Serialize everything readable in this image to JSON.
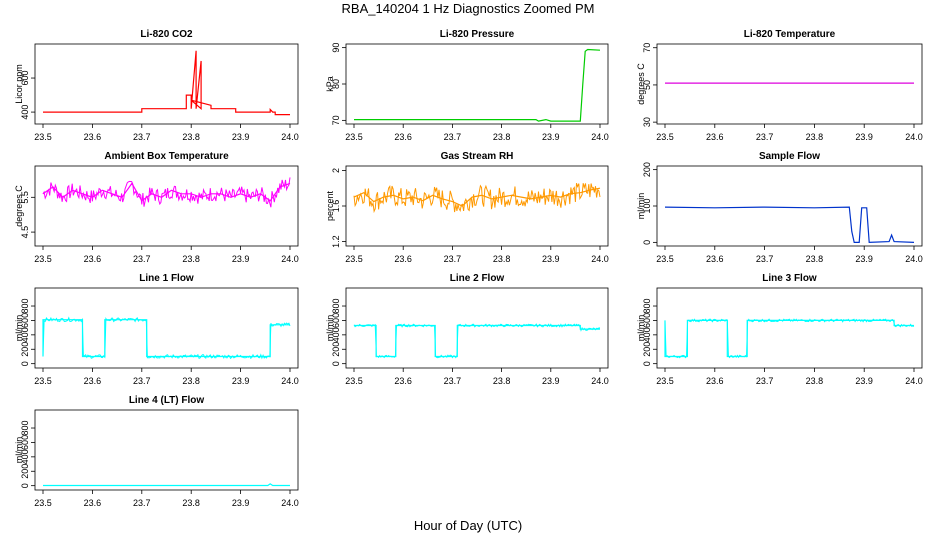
{
  "figure": {
    "title": "RBA_140204  1 Hz Diagnostics Zoomed PM",
    "xlabel": "Hour of Day (UTC)"
  },
  "chart_data": [
    {
      "type": "line",
      "title": "Li-820 CO2",
      "ylabel": "Licor ppm",
      "color": "#ff0000",
      "xlim": [
        23.5,
        24.0
      ],
      "ylim": [
        330,
        800
      ],
      "xticks": [
        "23.5",
        "23.6",
        "23.7",
        "23.8",
        "23.9",
        "24.0"
      ],
      "yticks": [
        400,
        600
      ],
      "series": [
        {
          "name": "CO2",
          "x": [
            23.5,
            23.7,
            23.7,
            23.79,
            23.79,
            23.8,
            23.8,
            23.81,
            23.81,
            23.82,
            23.82,
            23.8,
            23.84,
            23.84,
            23.89,
            23.89,
            23.95,
            23.96,
            23.96,
            23.965,
            23.97,
            23.97,
            24.0
          ],
          "y": [
            400,
            400,
            420,
            420,
            500,
            500,
            420,
            760,
            420,
            700,
            420,
            470,
            440,
            420,
            420,
            400,
            400,
            400,
            415,
            400,
            400,
            385,
            385
          ]
        }
      ]
    },
    {
      "type": "line",
      "title": "Li-820 Pressure",
      "ylabel": "kPa",
      "color": "#00cc00",
      "xlim": [
        23.5,
        24.0
      ],
      "ylim": [
        69,
        91
      ],
      "xticks": [
        "23.5",
        "23.6",
        "23.7",
        "23.8",
        "23.9",
        "24.0"
      ],
      "yticks": [
        70,
        80,
        90
      ],
      "series": [
        {
          "name": "Pressure",
          "x": [
            23.5,
            23.87,
            23.875,
            23.89,
            23.9,
            23.96,
            23.965,
            23.97,
            23.975,
            24.0
          ],
          "y": [
            70.2,
            70.2,
            69.8,
            70.2,
            69.8,
            69.8,
            80,
            89,
            89.5,
            89.3
          ]
        }
      ]
    },
    {
      "type": "line",
      "title": "Li-820 Temperature",
      "ylabel": "degrees C",
      "color": "#dd00dd",
      "xlim": [
        23.5,
        24.0
      ],
      "ylim": [
        29,
        72
      ],
      "xticks": [
        "23.5",
        "23.6",
        "23.7",
        "23.8",
        "23.9",
        "24.0"
      ],
      "yticks": [
        30,
        50,
        70
      ],
      "series": [
        {
          "name": "Temperature",
          "x": [
            23.5,
            24.0
          ],
          "y": [
            51,
            51
          ]
        }
      ]
    },
    {
      "type": "line",
      "title": "Ambient Box Temperature",
      "ylabel": "degrees C",
      "color": "#ff00ff",
      "xlim": [
        23.5,
        24.0
      ],
      "ylim": [
        4.1,
        6.4
      ],
      "xticks": [
        "23.5",
        "23.6",
        "23.7",
        "23.8",
        "23.9",
        "24.0"
      ],
      "yticks": [
        4.5,
        5.5
      ],
      "series": [
        {
          "name": "Box Temp",
          "x": [
            23.5,
            23.52,
            23.54,
            23.56,
            23.58,
            23.6,
            23.62,
            23.64,
            23.66,
            23.68,
            23.7,
            23.72,
            23.74,
            23.76,
            23.78,
            23.8,
            23.82,
            23.84,
            23.86,
            23.88,
            23.9,
            23.92,
            23.94,
            23.96,
            23.98,
            24.0
          ],
          "y": [
            5.6,
            5.8,
            5.5,
            5.7,
            5.6,
            5.5,
            5.7,
            5.6,
            5.5,
            5.9,
            5.4,
            5.6,
            5.5,
            5.7,
            5.6,
            5.6,
            5.5,
            5.6,
            5.6,
            5.5,
            5.6,
            5.5,
            5.6,
            5.4,
            5.8,
            5.9
          ]
        }
      ]
    },
    {
      "type": "line",
      "title": "Gas Stream RH",
      "ylabel": "percent",
      "color": "#ff9900",
      "xlim": [
        23.5,
        24.0
      ],
      "ylim": [
        1.15,
        2.05
      ],
      "xticks": [
        "23.5",
        "23.6",
        "23.7",
        "23.8",
        "23.9",
        "24.0"
      ],
      "yticks": [
        1.2,
        1.6,
        2.0
      ],
      "series": [
        {
          "name": "RH",
          "x": [
            23.5,
            23.52,
            23.54,
            23.56,
            23.58,
            23.6,
            23.62,
            23.64,
            23.66,
            23.68,
            23.7,
            23.72,
            23.74,
            23.76,
            23.78,
            23.8,
            23.82,
            23.84,
            23.86,
            23.88,
            23.9,
            23.92,
            23.94,
            23.96,
            23.98,
            24.0
          ],
          "y": [
            1.7,
            1.75,
            1.65,
            1.7,
            1.72,
            1.68,
            1.7,
            1.66,
            1.72,
            1.68,
            1.65,
            1.6,
            1.7,
            1.72,
            1.68,
            1.7,
            1.72,
            1.7,
            1.68,
            1.7,
            1.72,
            1.7,
            1.74,
            1.75,
            1.78,
            1.8
          ]
        }
      ]
    },
    {
      "type": "line",
      "title": "Sample Flow",
      "ylabel": "ml/min",
      "color": "#0033cc",
      "xlim": [
        23.5,
        24.0
      ],
      "ylim": [
        -10,
        210
      ],
      "xticks": [
        "23.5",
        "23.6",
        "23.7",
        "23.8",
        "23.9",
        "24.0"
      ],
      "yticks": [
        0,
        100,
        200
      ],
      "series": [
        {
          "name": "Sample Flow",
          "x": [
            23.5,
            23.6,
            23.7,
            23.8,
            23.87,
            23.875,
            23.88,
            23.89,
            23.895,
            23.905,
            23.91,
            23.95,
            23.955,
            23.96,
            24.0
          ],
          "y": [
            97,
            95,
            97,
            95,
            97,
            30,
            0,
            0,
            95,
            95,
            0,
            2,
            20,
            2,
            0
          ]
        }
      ]
    },
    {
      "type": "line",
      "title": "Line 1 Flow",
      "ylabel": "ml/min",
      "color": "#00ffff",
      "xlim": [
        23.5,
        24.0
      ],
      "ylim": [
        -60,
        1050
      ],
      "xticks": [
        "23.5",
        "23.6",
        "23.7",
        "23.8",
        "23.9",
        "24.0"
      ],
      "yticks": [
        0,
        200,
        400,
        600,
        800
      ],
      "series": [
        {
          "name": "Line 1",
          "x": [
            23.5,
            23.5,
            23.58,
            23.58,
            23.625,
            23.625,
            23.71,
            23.71,
            23.8,
            23.96,
            23.96,
            24.0
          ],
          "y": [
            100,
            610,
            610,
            100,
            100,
            610,
            610,
            100,
            100,
            100,
            540,
            540
          ]
        }
      ]
    },
    {
      "type": "line",
      "title": "Line 2 Flow",
      "ylabel": "ml/min",
      "color": "#00ffff",
      "xlim": [
        23.5,
        24.0
      ],
      "ylim": [
        -60,
        1050
      ],
      "xticks": [
        "23.5",
        "23.6",
        "23.7",
        "23.8",
        "23.9",
        "24.0"
      ],
      "yticks": [
        0,
        200,
        400,
        600,
        800
      ],
      "series": [
        {
          "name": "Line 2",
          "x": [
            23.5,
            23.545,
            23.545,
            23.585,
            23.585,
            23.665,
            23.665,
            23.71,
            23.71,
            23.96,
            23.96,
            24.0
          ],
          "y": [
            530,
            530,
            100,
            100,
            530,
            530,
            100,
            100,
            530,
            530,
            480,
            480
          ]
        }
      ]
    },
    {
      "type": "line",
      "title": "Line 3 Flow",
      "ylabel": "ml/min",
      "color": "#00ffff",
      "xlim": [
        23.5,
        24.0
      ],
      "ylim": [
        -60,
        1050
      ],
      "xticks": [
        "23.5",
        "23.6",
        "23.7",
        "23.8",
        "23.9",
        "24.0"
      ],
      "yticks": [
        0,
        200,
        400,
        600,
        800
      ],
      "series": [
        {
          "name": "Line 3",
          "x": [
            23.5,
            23.5,
            23.545,
            23.545,
            23.625,
            23.625,
            23.665,
            23.665,
            23.96,
            23.96,
            24.0
          ],
          "y": [
            600,
            100,
            100,
            600,
            600,
            100,
            100,
            600,
            600,
            530,
            530
          ]
        }
      ]
    },
    {
      "type": "line",
      "title": "Line 4 (LT) Flow",
      "ylabel": "ml/min",
      "color": "#00ffff",
      "xlim": [
        23.5,
        24.0
      ],
      "ylim": [
        -60,
        1050
      ],
      "xticks": [
        "23.5",
        "23.6",
        "23.7",
        "23.8",
        "23.9",
        "24.0"
      ],
      "yticks": [
        0,
        200,
        400,
        600,
        800
      ],
      "series": [
        {
          "name": "Line 4",
          "x": [
            23.5,
            23.955,
            23.96,
            23.965,
            24.0
          ],
          "y": [
            3,
            3,
            25,
            3,
            3
          ]
        }
      ]
    }
  ]
}
